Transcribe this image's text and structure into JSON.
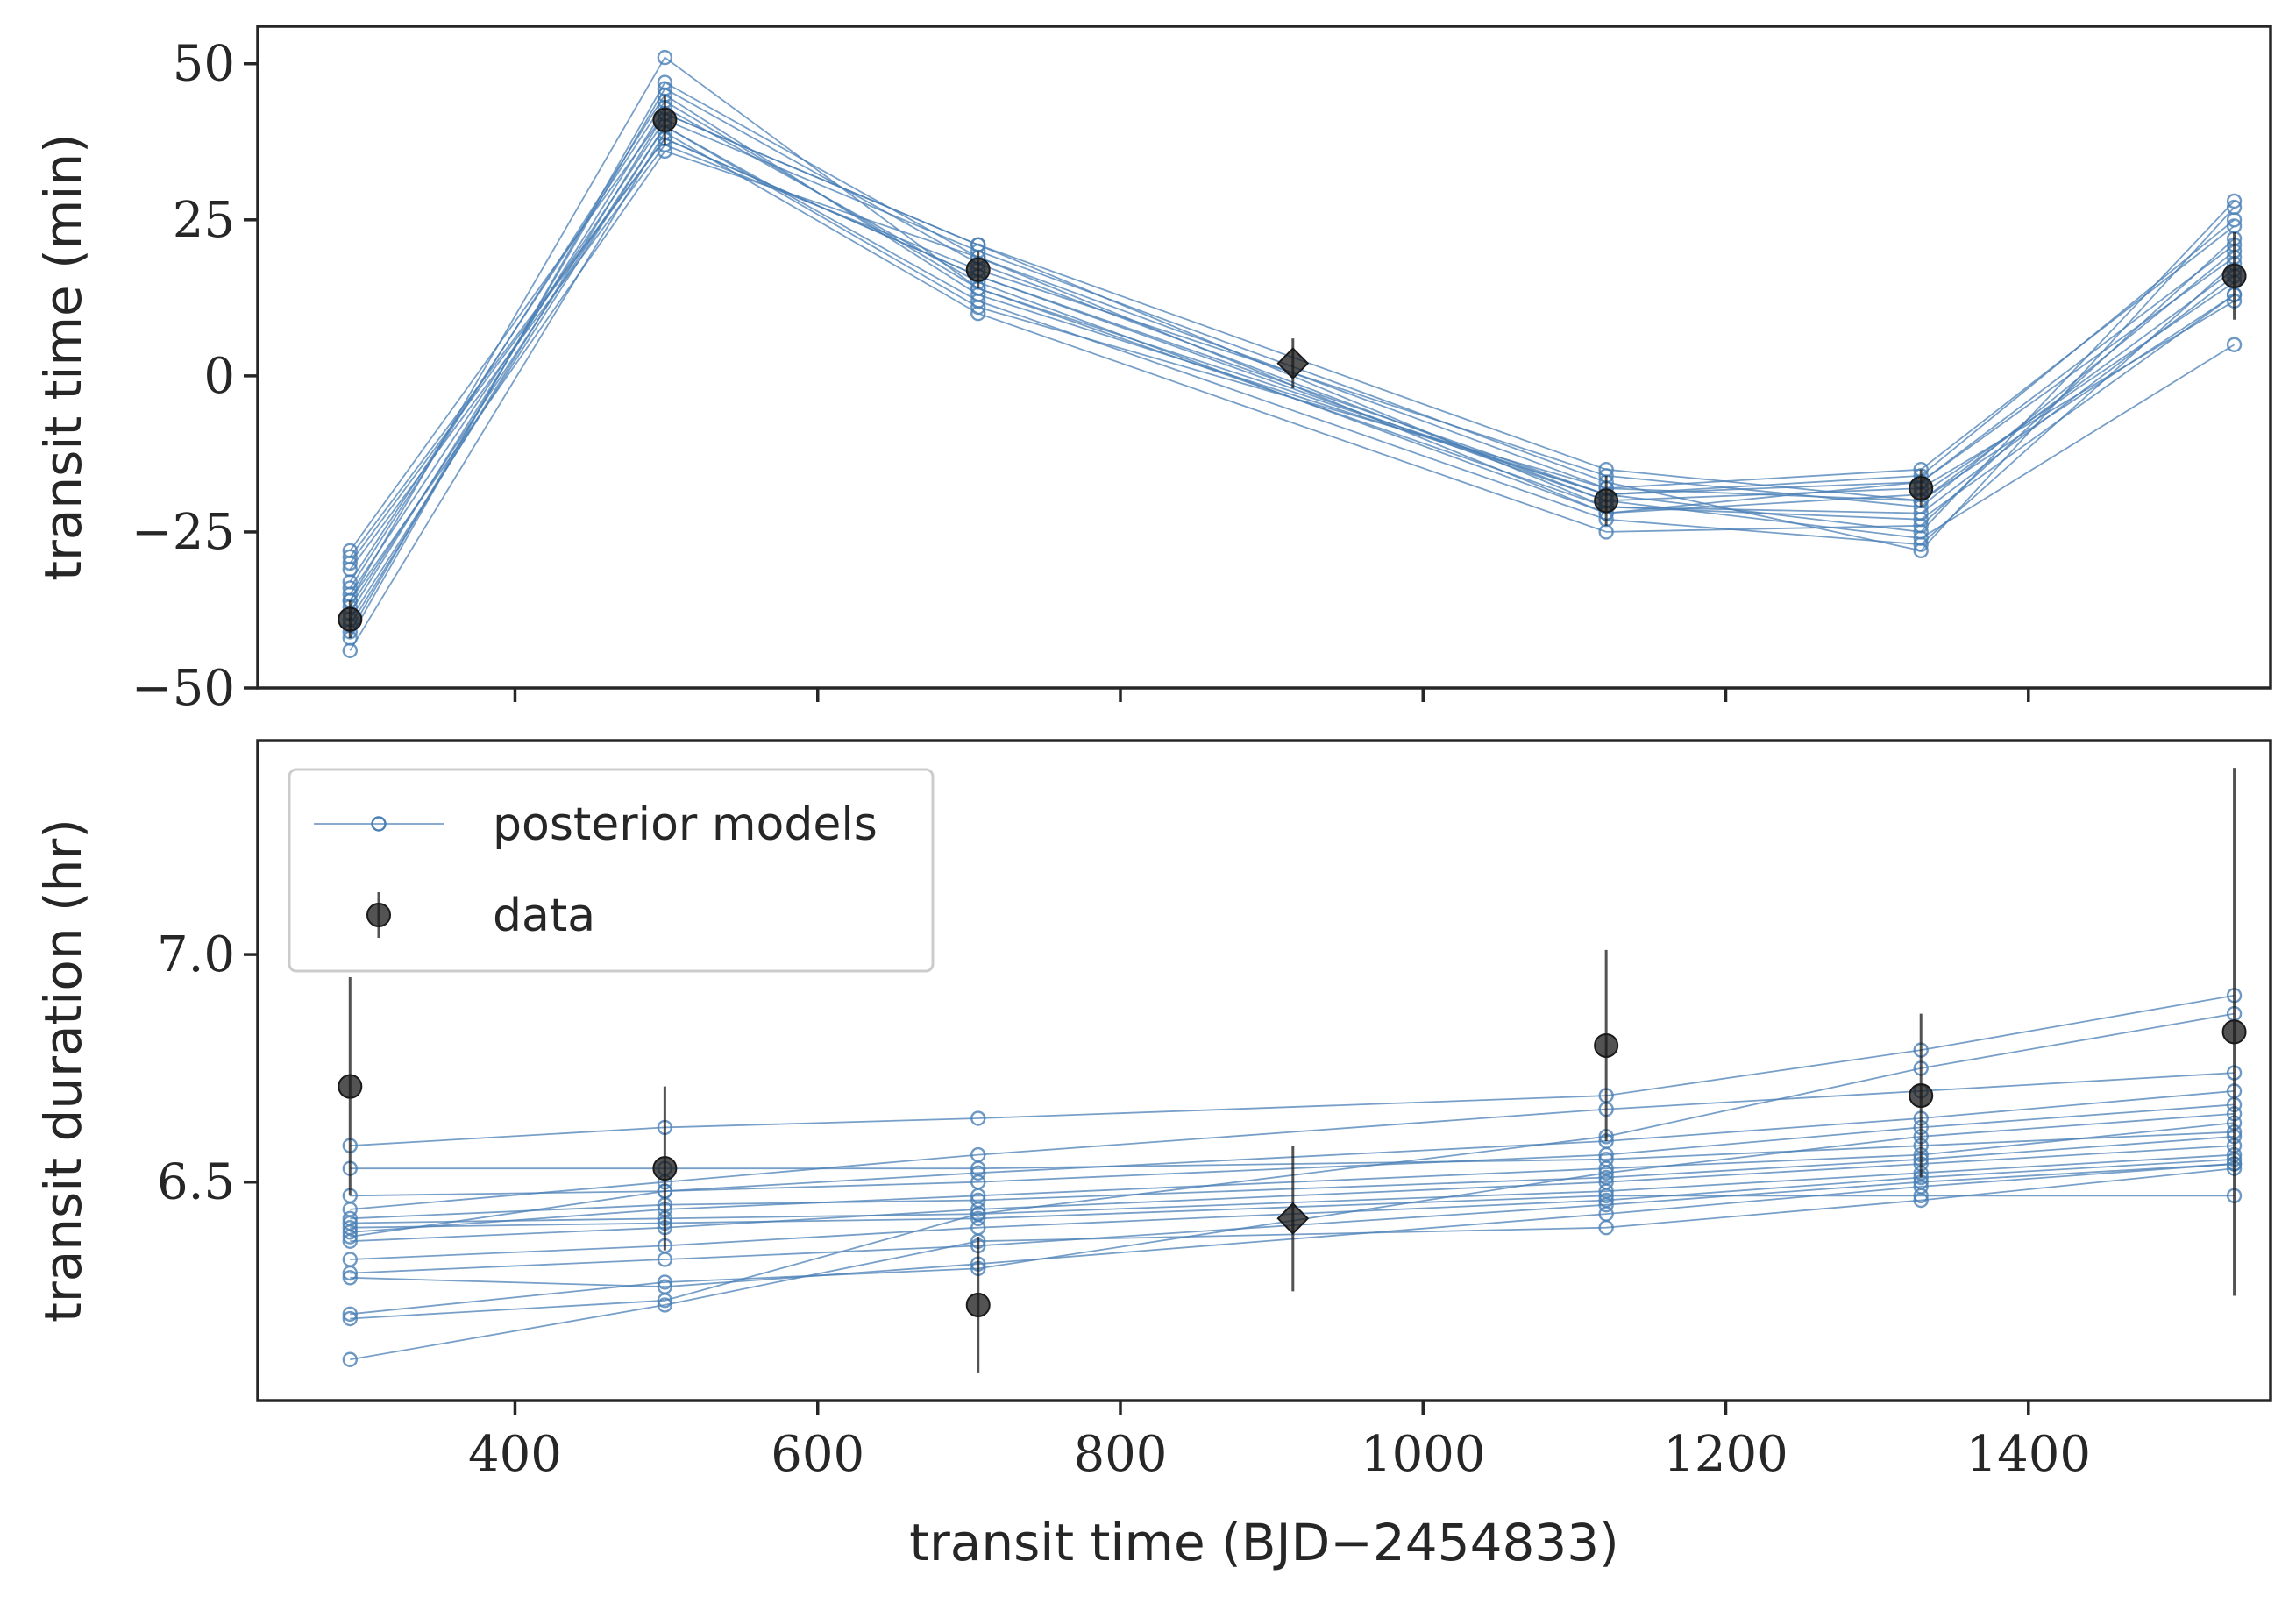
{
  "colors": {
    "model": "#4a7fb5",
    "data": "#1a1a1a",
    "axis": "#262626"
  },
  "chart_data": [
    {
      "type": "line",
      "panel": "top",
      "title": "",
      "xlabel": "",
      "ylabel": "transit time (min)",
      "xlim": [
        230,
        1560
      ],
      "ylim": [
        -50,
        56
      ],
      "xticks": [
        400,
        600,
        800,
        1000,
        1200,
        1400
      ],
      "yticks": [
        50,
        25,
        0,
        -25,
        -50
      ],
      "ytick_labels": [
        "50",
        "25",
        "0",
        "−25",
        "−50"
      ],
      "x": [
        291,
        499,
        706,
        1121,
        1329,
        1536
      ],
      "model_series": [
        [
          -28,
          42,
          21,
          -15,
          -20,
          13
        ],
        [
          -30,
          38,
          16,
          -19,
          -17,
          19
        ],
        [
          -33,
          44,
          14,
          -21,
          -22,
          16
        ],
        [
          -36,
          36,
          19,
          -18,
          -15,
          24
        ],
        [
          -39,
          40,
          12,
          -23,
          -27,
          18
        ],
        [
          -41,
          46,
          18,
          -20,
          -18,
          12
        ],
        [
          -44,
          39,
          10,
          -25,
          -24,
          22
        ],
        [
          -35,
          41,
          20,
          -17,
          -28,
          27
        ],
        [
          -38,
          43,
          15,
          -22,
          -19,
          15
        ],
        [
          -31,
          37,
          17,
          -16,
          -21,
          20
        ],
        [
          -34,
          45,
          13,
          -19,
          -16,
          25
        ],
        [
          -40,
          42,
          21,
          -21,
          -23,
          13
        ],
        [
          -37,
          40,
          11,
          -18,
          -20,
          17
        ],
        [
          -29,
          38,
          16,
          -20,
          -26,
          5
        ],
        [
          -42,
          47,
          19,
          -22,
          -17,
          21
        ],
        [
          -36,
          51,
          14,
          -19,
          -25,
          28
        ]
      ],
      "data_points": [
        {
          "x": 291,
          "y": -39,
          "err": 3,
          "marker": "circle"
        },
        {
          "x": 499,
          "y": 41,
          "err": 4,
          "marker": "circle"
        },
        {
          "x": 706,
          "y": 17,
          "err": 3,
          "marker": "circle"
        },
        {
          "x": 914,
          "y": 2,
          "err": 4,
          "marker": "diamond"
        },
        {
          "x": 1121,
          "y": -20,
          "err": 4,
          "marker": "circle"
        },
        {
          "x": 1329,
          "y": -18,
          "err": 3,
          "marker": "circle"
        },
        {
          "x": 1536,
          "y": 16,
          "err": 7,
          "marker": "circle"
        }
      ],
      "diamond_model_ratio": 0.48
    },
    {
      "type": "line",
      "panel": "bottom",
      "title": "",
      "xlabel": "transit time (BJD−2454833)",
      "ylabel": "transit duration (hr)",
      "xlim": [
        230,
        1560
      ],
      "ylim": [
        6.02,
        7.47
      ],
      "xticks": [
        400,
        600,
        800,
        1000,
        1200,
        1400
      ],
      "yticks": [
        7.0,
        6.5
      ],
      "ytick_labels": [
        "7.0",
        "6.5"
      ],
      "x": [
        291,
        499,
        706,
        1121,
        1329,
        1536
      ],
      "model_series": [
        [
          6.58,
          6.62,
          6.64,
          6.69,
          6.79,
          6.91
        ],
        [
          6.53,
          6.53,
          6.53,
          6.55,
          6.58,
          6.61
        ],
        [
          6.47,
          6.48,
          6.5,
          6.56,
          6.62,
          6.67
        ],
        [
          6.42,
          6.45,
          6.46,
          6.51,
          6.55,
          6.6
        ],
        [
          6.41,
          6.42,
          6.43,
          6.48,
          6.52,
          6.56
        ],
        [
          6.4,
          6.41,
          6.42,
          6.47,
          6.47,
          6.47
        ],
        [
          6.39,
          6.44,
          6.47,
          6.53,
          6.56,
          6.63
        ],
        [
          6.38,
          6.48,
          6.52,
          6.59,
          6.64,
          6.7
        ],
        [
          6.37,
          6.4,
          6.44,
          6.5,
          6.54,
          6.58
        ],
        [
          6.33,
          6.36,
          6.4,
          6.46,
          6.51,
          6.55
        ],
        [
          6.3,
          6.33,
          6.36,
          6.45,
          6.5,
          6.54
        ],
        [
          6.29,
          6.27,
          6.32,
          6.43,
          6.49,
          6.54
        ],
        [
          6.21,
          6.28,
          6.31,
          6.52,
          6.6,
          6.65
        ],
        [
          6.2,
          6.24,
          6.43,
          6.6,
          6.75,
          6.87
        ],
        [
          6.11,
          6.23,
          6.37,
          6.4,
          6.46,
          6.53
        ],
        [
          6.44,
          6.5,
          6.56,
          6.66,
          6.7,
          6.74
        ]
      ],
      "data_points": [
        {
          "x": 291,
          "y": 6.71,
          "err": 0.24,
          "marker": "circle"
        },
        {
          "x": 499,
          "y": 6.53,
          "err": 0.18,
          "marker": "circle"
        },
        {
          "x": 706,
          "y": 6.23,
          "err": 0.15,
          "marker": "circle"
        },
        {
          "x": 914,
          "y": 6.42,
          "err": 0.16,
          "marker": "diamond"
        },
        {
          "x": 1121,
          "y": 6.8,
          "err": 0.21,
          "marker": "circle"
        },
        {
          "x": 1329,
          "y": 6.69,
          "err": 0.18,
          "marker": "circle"
        },
        {
          "x": 1536,
          "y": 6.83,
          "err": 0.58,
          "marker": "circle"
        }
      ],
      "legend": {
        "position": "upper-left",
        "entries": [
          {
            "label": "posterior models",
            "kind": "model"
          },
          {
            "label": "data",
            "kind": "data"
          }
        ]
      }
    }
  ]
}
